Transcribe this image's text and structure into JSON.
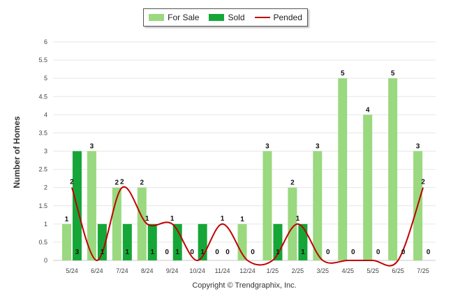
{
  "legend": {
    "for_sale": "For Sale",
    "sold": "Sold",
    "pended": "Pended"
  },
  "footer": "Copyright © Trendgraphix, Inc.",
  "colors": {
    "for_sale": "#9ad97f",
    "sold": "#16a637",
    "pended": "#c00000",
    "grid": "#e6e6e6"
  },
  "chart_data": {
    "type": "bar",
    "ylabel": "Number of Homes",
    "ylim": [
      0,
      6
    ],
    "yticks": [
      "0",
      "0.5",
      "1",
      "1.5",
      "2",
      "2.5",
      "3",
      "3.5",
      "4",
      "4.5",
      "5",
      "5.5",
      "6"
    ],
    "categories": [
      "5/24",
      "6/24",
      "7/24",
      "8/24",
      "9/24",
      "10/24",
      "11/24",
      "12/24",
      "1/25",
      "2/25",
      "3/25",
      "4/25",
      "5/25",
      "6/25",
      "7/25"
    ],
    "series": [
      {
        "name": "For Sale",
        "kind": "bar",
        "values": [
          1,
          3,
          2,
          2,
          0,
          0,
          0,
          1,
          3,
          2,
          3,
          5,
          4,
          5,
          3
        ]
      },
      {
        "name": "Sold",
        "kind": "bar",
        "values": [
          3,
          1,
          1,
          1,
          1,
          1,
          0,
          0,
          1,
          1,
          0,
          0,
          0,
          0,
          0
        ]
      },
      {
        "name": "Pended",
        "kind": "line",
        "values": [
          2,
          0,
          2,
          1,
          1,
          0,
          1,
          0,
          0,
          1,
          0,
          0,
          0,
          0,
          2
        ]
      }
    ],
    "grid": true,
    "legend_position": "top-center"
  }
}
